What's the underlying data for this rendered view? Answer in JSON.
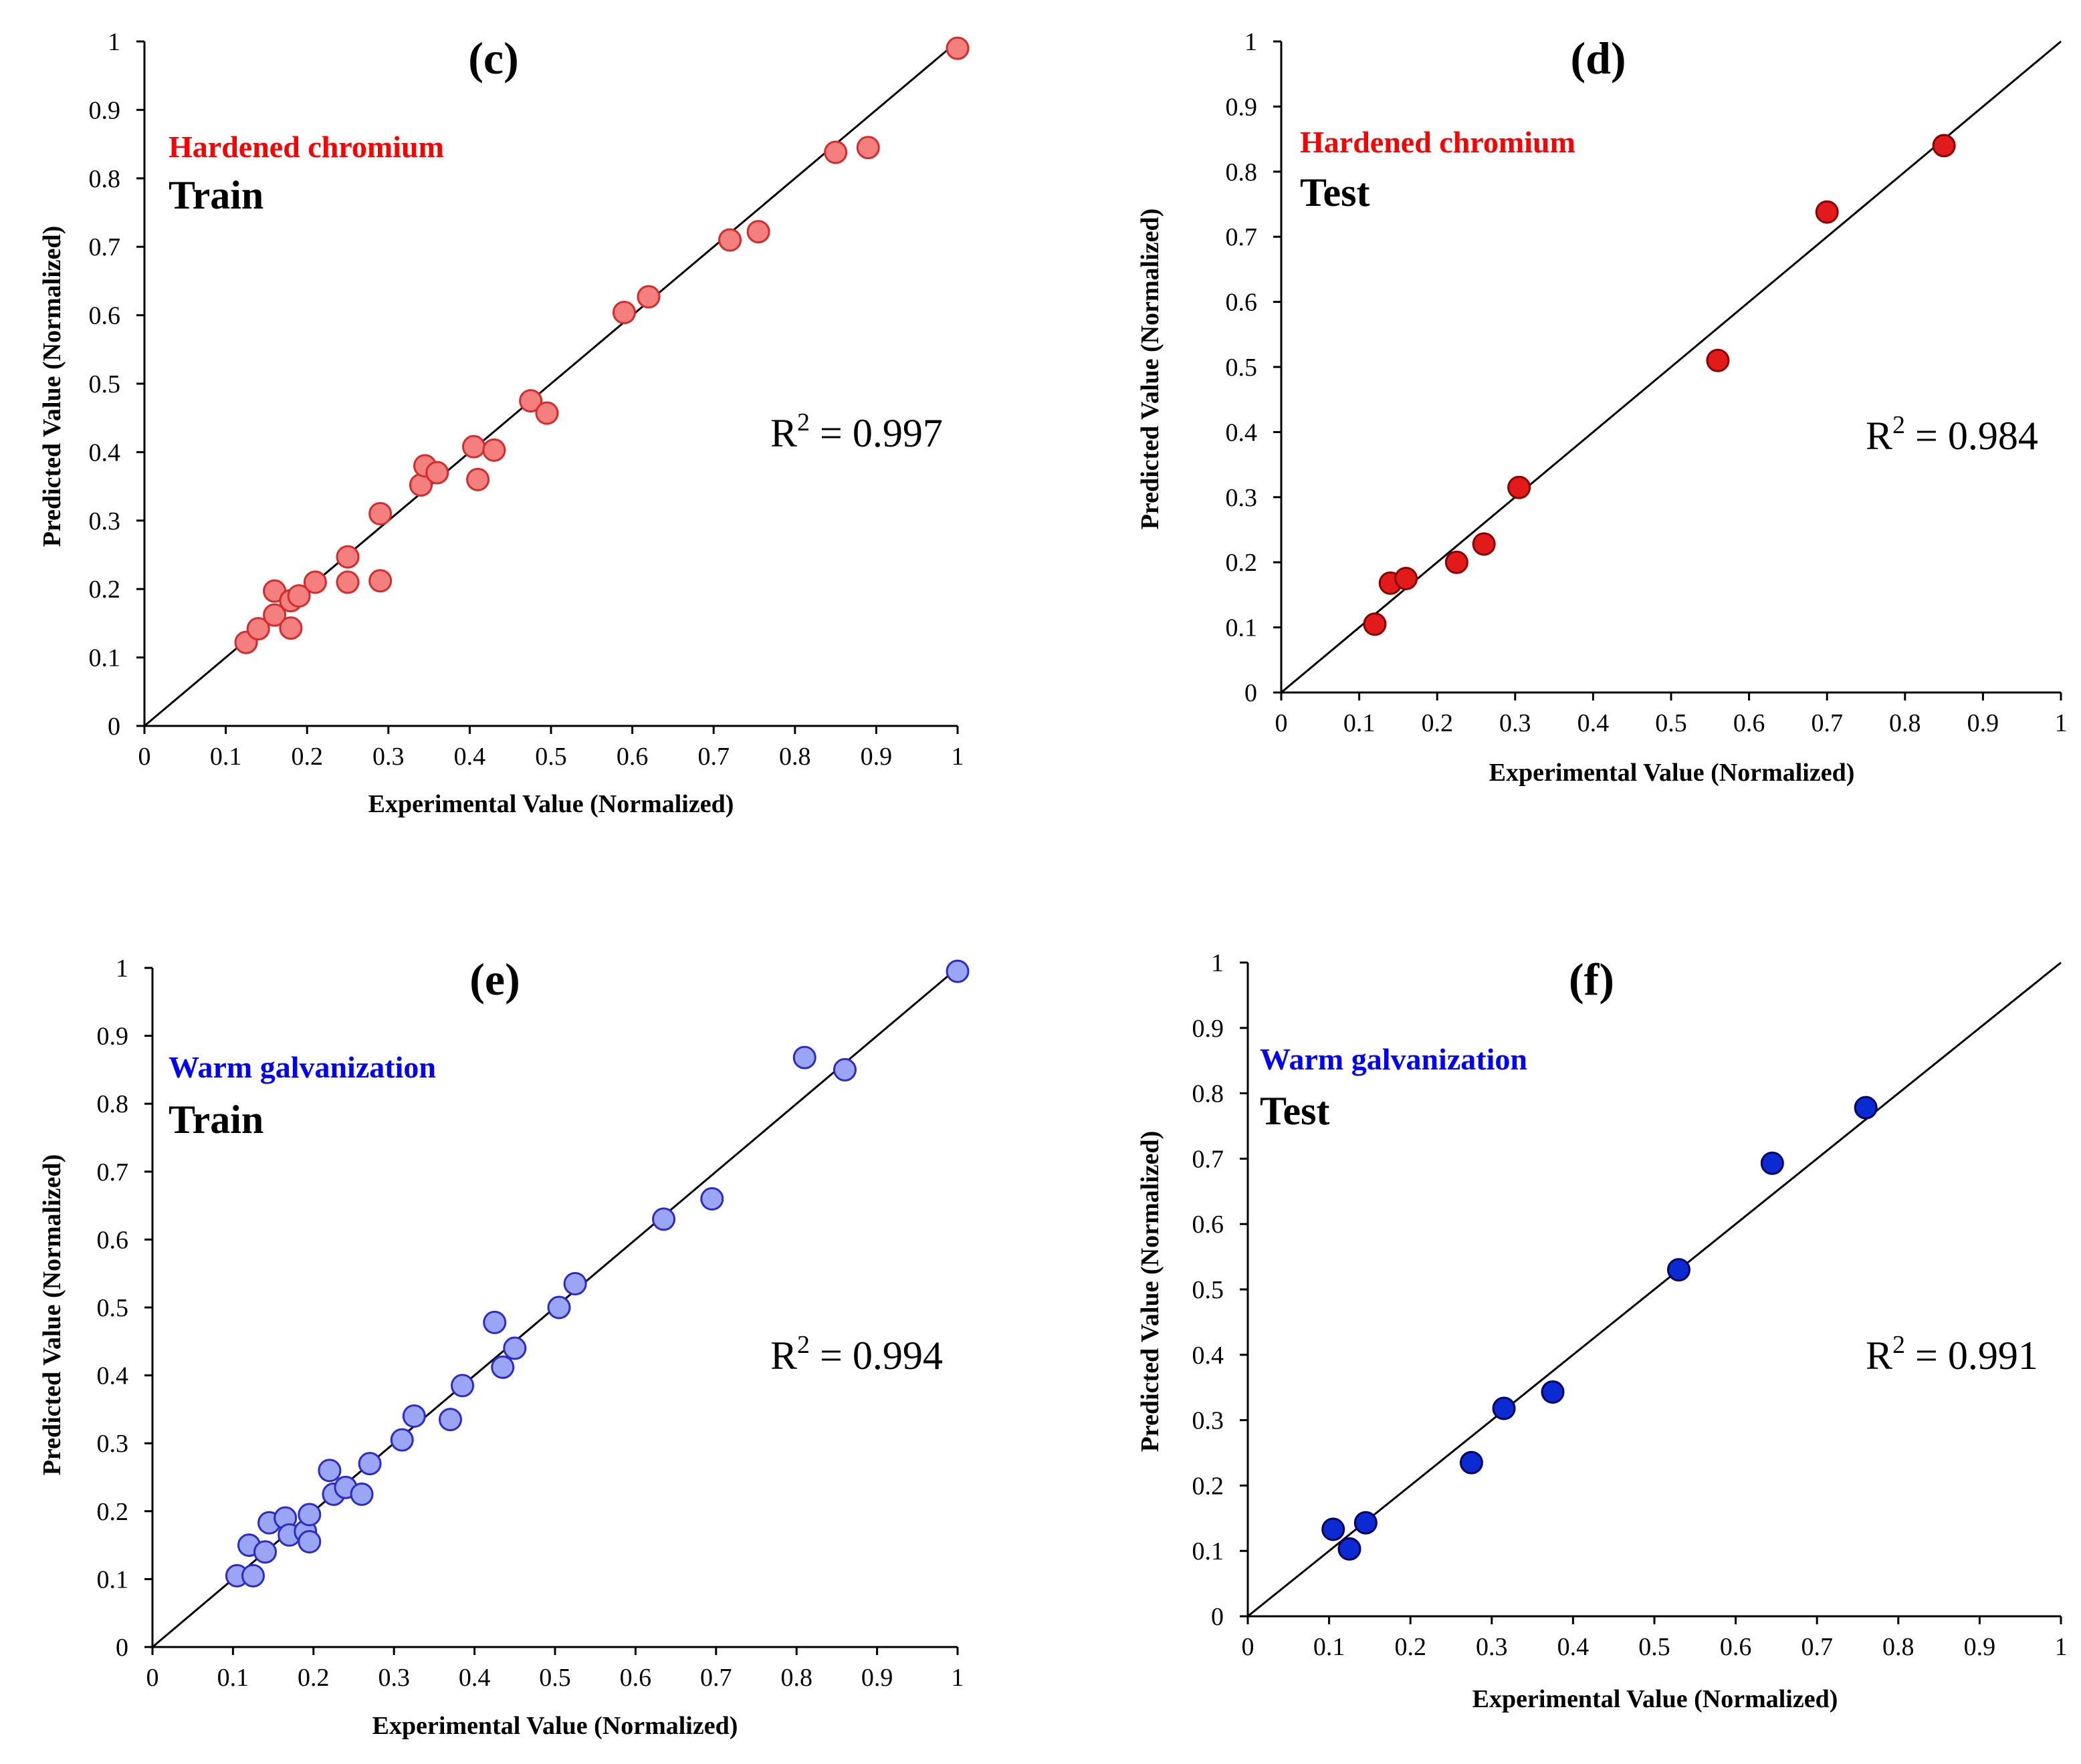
{
  "chart_data": [
    {
      "type": "scatter",
      "panel_label": "(c)",
      "material": "Hardened chromium",
      "subset": "Train",
      "r2_label": {
        "base": "R",
        "sup": "2",
        "rest": " = 0.997"
      },
      "xlabel": "Experimental Value (Normalized)",
      "ylabel": "Predicted  Value (Normalized)",
      "xlim": [
        0,
        1
      ],
      "ylim": [
        0,
        1
      ],
      "xticks": [
        "0",
        "0.1",
        "0.2",
        "0.3",
        "0.4",
        "0.5",
        "0.6",
        "0.7",
        "0.8",
        "0.9",
        "1"
      ],
      "yticks": [
        "0",
        "0.1",
        "0.2",
        "0.3",
        "0.4",
        "0.5",
        "0.6",
        "0.7",
        "0.8",
        "0.9",
        "1"
      ],
      "fit_line": [
        [
          0,
          0
        ],
        [
          1,
          1
        ]
      ],
      "marker": {
        "fill": "#f47f7f",
        "stroke": "#d42b2b",
        "opacity": 1
      },
      "label_color": "#ff0000",
      "points": [
        [
          0.125,
          0.122
        ],
        [
          0.14,
          0.142
        ],
        [
          0.16,
          0.162
        ],
        [
          0.16,
          0.197
        ],
        [
          0.18,
          0.183
        ],
        [
          0.19,
          0.19
        ],
        [
          0.18,
          0.143
        ],
        [
          0.21,
          0.21
        ],
        [
          0.25,
          0.247
        ],
        [
          0.25,
          0.21
        ],
        [
          0.29,
          0.212
        ],
        [
          0.29,
          0.31
        ],
        [
          0.34,
          0.352
        ],
        [
          0.345,
          0.38
        ],
        [
          0.36,
          0.37
        ],
        [
          0.405,
          0.408
        ],
        [
          0.41,
          0.36
        ],
        [
          0.43,
          0.403
        ],
        [
          0.475,
          0.475
        ],
        [
          0.495,
          0.457
        ],
        [
          0.59,
          0.604
        ],
        [
          0.62,
          0.627
        ],
        [
          0.72,
          0.71
        ],
        [
          0.755,
          0.722
        ],
        [
          0.85,
          0.838
        ],
        [
          0.89,
          0.845
        ],
        [
          1.0,
          0.99
        ]
      ]
    },
    {
      "type": "scatter",
      "panel_label": "(d)",
      "material": "Hardened chromium",
      "subset": "Test",
      "r2_label": {
        "base": "R",
        "sup": "2",
        "rest": " = 0.984"
      },
      "xlabel": "Experimental Value (Normalized)",
      "ylabel": "Predicted Value (Normalized)",
      "xlim": [
        0,
        1
      ],
      "ylim": [
        0,
        1
      ],
      "xticks": [
        "0",
        "0.1",
        "0.2",
        "0.3",
        "0.4",
        "0.5",
        "0.6",
        "0.7",
        "0.8",
        "0.9",
        "1"
      ],
      "yticks": [
        "0",
        "0.1",
        "0.2",
        "0.3",
        "0.4",
        "0.5",
        "0.6",
        "0.7",
        "0.8",
        "0.9",
        "1"
      ],
      "fit_line": [
        [
          0,
          0
        ],
        [
          1,
          1
        ]
      ],
      "marker": {
        "fill": "#e31a1a",
        "stroke": "#8a0000",
        "opacity": 1
      },
      "label_color": "#ff0000",
      "points": [
        [
          0.12,
          0.105
        ],
        [
          0.14,
          0.168
        ],
        [
          0.16,
          0.175
        ],
        [
          0.225,
          0.2
        ],
        [
          0.26,
          0.228
        ],
        [
          0.305,
          0.315
        ],
        [
          0.56,
          0.51
        ],
        [
          0.7,
          0.738
        ],
        [
          0.85,
          0.84
        ]
      ]
    },
    {
      "type": "scatter",
      "panel_label": "(e)",
      "material": "Warm galvanization",
      "subset": "Train",
      "r2_label": {
        "base": "R",
        "sup": "2",
        "rest": " = 0.994"
      },
      "xlabel": "Experimental Value (Normalized)",
      "ylabel": "Predicted Value (Normalized)",
      "xlim": [
        0,
        1
      ],
      "ylim": [
        0,
        1
      ],
      "xticks": [
        "0",
        "0.1",
        "0.2",
        "0.3",
        "0.4",
        "0.5",
        "0.6",
        "0.7",
        "0.8",
        "0.9",
        "1"
      ],
      "yticks": [
        "0",
        "0.1",
        "0.2",
        "0.3",
        "0.4",
        "0.5",
        "0.6",
        "0.7",
        "0.8",
        "0.9",
        "1"
      ],
      "fit_line": [
        [
          0,
          0
        ],
        [
          1,
          1
        ]
      ],
      "marker": {
        "fill": "#9aa6f4",
        "stroke": "#2b2bcc",
        "opacity": 1
      },
      "label_color": "#0000ff",
      "points": [
        [
          0.105,
          0.105
        ],
        [
          0.12,
          0.15
        ],
        [
          0.125,
          0.105
        ],
        [
          0.14,
          0.14
        ],
        [
          0.145,
          0.183
        ],
        [
          0.165,
          0.19
        ],
        [
          0.17,
          0.165
        ],
        [
          0.19,
          0.17
        ],
        [
          0.195,
          0.155
        ],
        [
          0.195,
          0.195
        ],
        [
          0.22,
          0.26
        ],
        [
          0.225,
          0.225
        ],
        [
          0.24,
          0.235
        ],
        [
          0.26,
          0.225
        ],
        [
          0.27,
          0.27
        ],
        [
          0.31,
          0.305
        ],
        [
          0.325,
          0.34
        ],
        [
          0.37,
          0.335
        ],
        [
          0.385,
          0.385
        ],
        [
          0.425,
          0.478
        ],
        [
          0.435,
          0.412
        ],
        [
          0.45,
          0.44
        ],
        [
          0.505,
          0.5
        ],
        [
          0.525,
          0.535
        ],
        [
          0.635,
          0.63
        ],
        [
          0.695,
          0.66
        ],
        [
          0.81,
          0.868
        ],
        [
          0.86,
          0.85
        ],
        [
          1.0,
          0.995
        ]
      ]
    },
    {
      "type": "scatter",
      "panel_label": "(f)",
      "material": "Warm galvanization",
      "subset": "Test",
      "r2_label": {
        "base": "R",
        "sup": "2",
        "rest": " = 0.991"
      },
      "xlabel": "Experimental Value (Normalized)",
      "ylabel": "Predicted Value (Normalized)",
      "xlim": [
        0,
        1
      ],
      "ylim": [
        0,
        1
      ],
      "xticks": [
        "0",
        "0.1",
        "0.2",
        "0.3",
        "0.4",
        "0.5",
        "0.6",
        "0.7",
        "0.8",
        "0.9",
        "1"
      ],
      "yticks": [
        "0",
        "0.1",
        "0.2",
        "0.3",
        "0.4",
        "0.5",
        "0.6",
        "0.7",
        "0.8",
        "0.9",
        "1"
      ],
      "fit_line": [
        [
          0,
          0
        ],
        [
          1,
          1
        ]
      ],
      "marker": {
        "fill": "#0a2bd1",
        "stroke": "#000066",
        "opacity": 1
      },
      "label_color": "#0000ff",
      "points": [
        [
          0.105,
          0.133
        ],
        [
          0.125,
          0.103
        ],
        [
          0.145,
          0.143
        ],
        [
          0.275,
          0.235
        ],
        [
          0.315,
          0.318
        ],
        [
          0.375,
          0.343
        ],
        [
          0.53,
          0.53
        ],
        [
          0.645,
          0.693
        ],
        [
          0.76,
          0.778
        ]
      ]
    }
  ]
}
